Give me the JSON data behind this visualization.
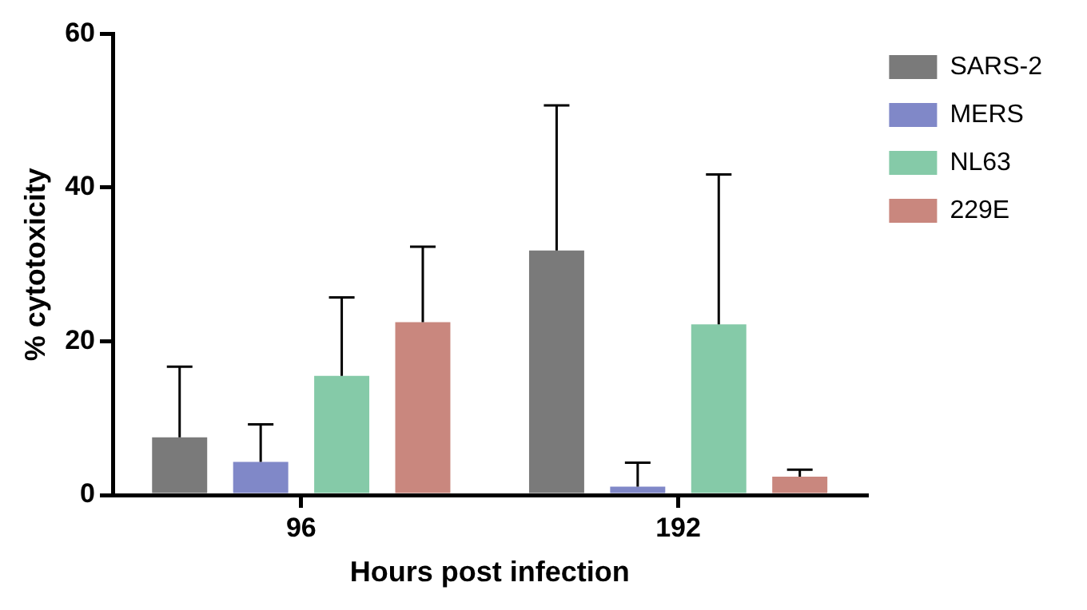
{
  "chart_data": {
    "type": "bar",
    "xlabel": "Hours post infection",
    "ylabel": "% cytotoxicity",
    "categories": [
      "96",
      "192"
    ],
    "series": [
      {
        "name": "SARS-2",
        "color": "#7a7a7a",
        "values": [
          7.5,
          31.8
        ],
        "errors": [
          [
            7.5,
            16.7
          ],
          [
            31.8,
            50.7
          ]
        ]
      },
      {
        "name": "MERS",
        "color": "#8088c8",
        "values": [
          4.3,
          1.1
        ],
        "errors": [
          [
            4.3,
            9.2
          ],
          [
            1.1,
            4.2
          ]
        ]
      },
      {
        "name": "NL63",
        "color": "#85caa8",
        "values": [
          15.5,
          22.2
        ],
        "errors": [
          [
            15.5,
            25.7
          ],
          [
            22.2,
            41.7
          ]
        ]
      },
      {
        "name": "229E",
        "color": "#c9877e",
        "values": [
          22.5,
          2.4
        ],
        "errors": [
          [
            22.5,
            32.3
          ],
          [
            2.4,
            3.3
          ]
        ]
      }
    ],
    "ylim": [
      0,
      60
    ],
    "yticks": [
      0,
      20,
      40,
      60
    ],
    "grid": false,
    "legend": "right"
  }
}
